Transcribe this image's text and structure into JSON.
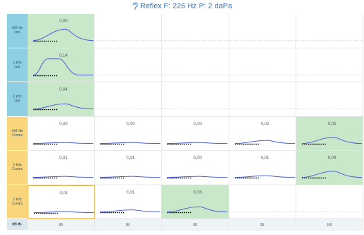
{
  "header": {
    "title": "Reflex  F: 226 Hz P: 2 daPa",
    "accent": "#3a6fb0"
  },
  "rows": [
    {
      "label": "500 Hz\nIpsi",
      "type": "ipsi",
      "cells": [
        {
          "value": "0,00",
          "green": true,
          "peak": 0.55
        }
      ]
    },
    {
      "label": "1 kHz\nIpsi",
      "type": "ipsi",
      "cells": [
        {
          "value": "0,14",
          "green": true,
          "peak": 0.8,
          "plateau": true
        }
      ]
    },
    {
      "label": "2 kHz\nIpsi",
      "type": "ipsi",
      "cells": [
        {
          "value": "0,04",
          "green": true,
          "peak": 0.25
        }
      ]
    },
    {
      "label": "500 Hz\nContra",
      "type": "contra",
      "cells": [
        {
          "value": "0,00",
          "green": false,
          "peak": 0.05
        },
        {
          "value": "0,00",
          "green": false,
          "peak": 0.05
        },
        {
          "value": "0,00",
          "green": false,
          "peak": 0.05
        },
        {
          "value": "0,02",
          "green": false,
          "peak": 0.15
        },
        {
          "value": "0,03",
          "green": true,
          "peak": 0.3
        }
      ]
    },
    {
      "label": "1 kHz\nContra",
      "type": "contra",
      "cells": [
        {
          "value": "0,01",
          "green": false,
          "peak": 0.05
        },
        {
          "value": "0,01",
          "green": false,
          "peak": 0.05
        },
        {
          "value": "0,00",
          "green": false,
          "peak": 0.05
        },
        {
          "value": "0,01",
          "green": false,
          "peak": 0.08
        },
        {
          "value": "0,04",
          "green": true,
          "peak": 0.3
        }
      ]
    },
    {
      "label": "2 kHz\nContra",
      "type": "contra",
      "cells": [
        {
          "value": "0,01",
          "green": false,
          "peak": 0.05,
          "selected": true
        },
        {
          "value": "0,01",
          "green": false,
          "peak": 0.1
        },
        {
          "value": "0,03",
          "green": true,
          "peak": 0.25
        }
      ]
    }
  ],
  "footer": {
    "label": "dB HL",
    "levels": [
      "80",
      "85",
      "90",
      "95",
      "100"
    ]
  }
}
